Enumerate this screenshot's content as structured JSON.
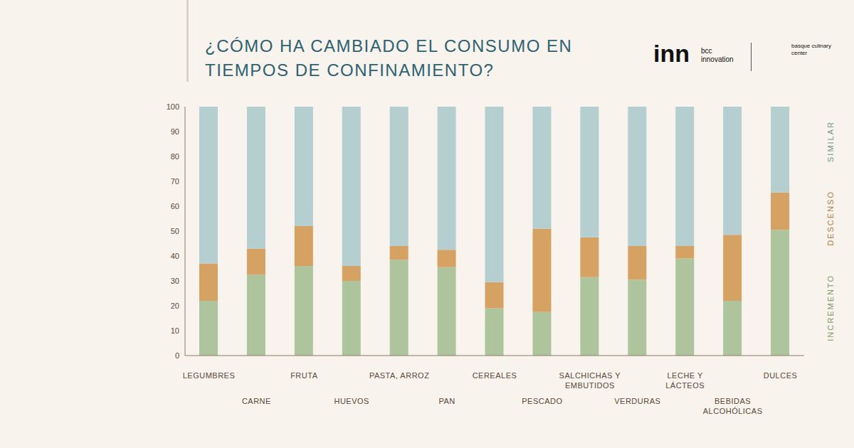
{
  "chart_data": {
    "type": "bar",
    "title": "¿CÓMO HA CAMBIADO EL CONSUMO EN TIEMPOS DE CONFINAMIENTO?",
    "annotations": [
      "inn",
      "bcc innovation",
      "basque culinary center"
    ],
    "categories": [
      "LEGUMBRES",
      "CARNE",
      "FRUTA",
      "HUEVOS",
      "PASTA, ARROZ",
      "PAN",
      "CEREALES",
      "PESCADO",
      "SALCHICHAS Y EMBUTIDOS",
      "VERDURAS",
      "LECHE Y LÁCTEOS",
      "BEBIDAS ALCOHÓLICAS",
      "DULCES"
    ],
    "series": [
      {
        "name": "INCREMENTO",
        "color": "#aec49c",
        "values": [
          22,
          32.5,
          36,
          30,
          38.5,
          35.5,
          19,
          17.5,
          31.5,
          30.5,
          39,
          22,
          50.5
        ]
      },
      {
        "name": "DESCENSO",
        "color": "#d5a263",
        "values": [
          15,
          10.5,
          16,
          6,
          5.5,
          7,
          10.5,
          33.5,
          16,
          13.5,
          5,
          26.5,
          15
        ]
      },
      {
        "name": "SIMILAR",
        "color": "#b5cfd0",
        "values": [
          63,
          57,
          48,
          64,
          56,
          57.5,
          70.5,
          49,
          52.5,
          56,
          56,
          51.5,
          34.5
        ]
      }
    ],
    "ylim": [
      0,
      100
    ],
    "yticks": [
      0,
      10,
      20,
      30,
      40,
      50,
      60,
      70,
      80,
      90,
      100
    ],
    "stacked": true,
    "grid": false,
    "legend": "right"
  }
}
